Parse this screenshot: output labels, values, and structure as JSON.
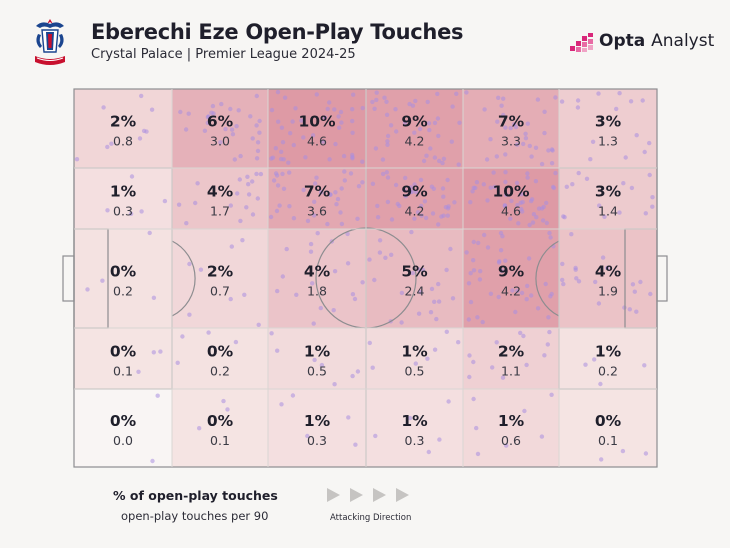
{
  "header": {
    "title": "Eberechi Eze Open-Play Touches",
    "subtitle": "Crystal Palace | Premier League 2024-25",
    "brand_bold": "Opta",
    "brand_light": "Analyst"
  },
  "legend": {
    "primary_label": "% of open-play touches",
    "secondary_label": "open-play touches per 90",
    "direction_label": "Attacking Direction"
  },
  "colors": {
    "background": "#f7f6f4",
    "heat_low": "#f6e7e6",
    "heat_high": "#de9aa5",
    "dot": "#a98ee0",
    "pitch_line": "#8d8d90",
    "brand_accent": "#d9277a"
  },
  "chart_data": {
    "type": "heatmap",
    "orientation": "attacking left to right",
    "columns": 6,
    "rows": 5,
    "cells": [
      [
        {
          "pct": "2%",
          "per90": "0.8"
        },
        {
          "pct": "6%",
          "per90": "3.0"
        },
        {
          "pct": "10%",
          "per90": "4.6"
        },
        {
          "pct": "9%",
          "per90": "4.2"
        },
        {
          "pct": "7%",
          "per90": "3.3"
        },
        {
          "pct": "3%",
          "per90": "1.3"
        }
      ],
      [
        {
          "pct": "1%",
          "per90": "0.3"
        },
        {
          "pct": "4%",
          "per90": "1.7"
        },
        {
          "pct": "7%",
          "per90": "3.6"
        },
        {
          "pct": "9%",
          "per90": "4.2"
        },
        {
          "pct": "10%",
          "per90": "4.6"
        },
        {
          "pct": "3%",
          "per90": "1.4"
        }
      ],
      [
        {
          "pct": "0%",
          "per90": "0.2"
        },
        {
          "pct": "2%",
          "per90": "0.7"
        },
        {
          "pct": "4%",
          "per90": "1.8"
        },
        {
          "pct": "5%",
          "per90": "2.4"
        },
        {
          "pct": "9%",
          "per90": "4.2"
        },
        {
          "pct": "4%",
          "per90": "1.9"
        }
      ],
      [
        {
          "pct": "0%",
          "per90": "0.1"
        },
        {
          "pct": "0%",
          "per90": "0.2"
        },
        {
          "pct": "1%",
          "per90": "0.5"
        },
        {
          "pct": "1%",
          "per90": "0.5"
        },
        {
          "pct": "2%",
          "per90": "1.1"
        },
        {
          "pct": "1%",
          "per90": "0.2"
        }
      ],
      [
        {
          "pct": "0%",
          "per90": "0.0"
        },
        {
          "pct": "0%",
          "per90": "0.1"
        },
        {
          "pct": "1%",
          "per90": "0.3"
        },
        {
          "pct": "1%",
          "per90": "0.3"
        },
        {
          "pct": "1%",
          "per90": "0.6"
        },
        {
          "pct": "0%",
          "per90": "0.1"
        }
      ]
    ]
  }
}
